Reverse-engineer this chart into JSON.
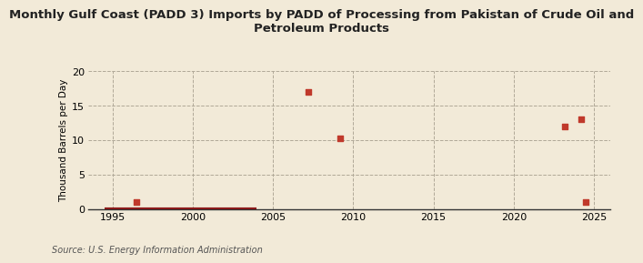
{
  "title": "Monthly Gulf Coast (PADD 3) Imports by PADD of Processing from Pakistan of Crude Oil and\nPetroleum Products",
  "ylabel": "Thousand Barrels per Day",
  "source": "Source: U.S. Energy Information Administration",
  "background_color": "#f2ead8",
  "plot_bg_color": "#f2ead8",
  "scatter_color": "#c0392b",
  "line_color": "#8b1a1a",
  "xlim": [
    1993.5,
    2026
  ],
  "ylim": [
    0,
    20
  ],
  "yticks": [
    0,
    5,
    10,
    15,
    20
  ],
  "xticks": [
    1995,
    2000,
    2005,
    2010,
    2015,
    2020,
    2025
  ],
  "scatter_x": [
    1996.5,
    2007.2,
    2009.2,
    2023.2,
    2024.2,
    2024.5
  ],
  "scatter_y": [
    1.0,
    17.0,
    10.2,
    12.0,
    13.0,
    1.0
  ],
  "line_x_start": 1994.5,
  "line_x_end": 2004.0,
  "grid_color": "#b0a898",
  "grid_linestyle": "--",
  "grid_linewidth": 0.7,
  "title_fontsize": 9.5,
  "ylabel_fontsize": 7.5,
  "tick_fontsize": 8,
  "source_fontsize": 7
}
